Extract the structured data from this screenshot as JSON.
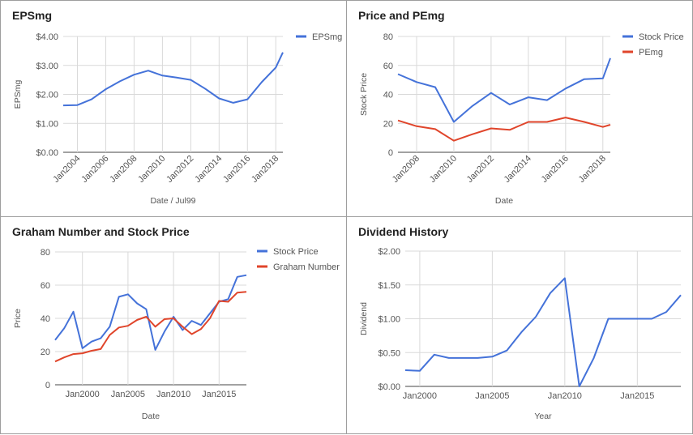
{
  "colors": {
    "blue": "#4472d9",
    "red": "#e0452b",
    "grid": "#d9d9d9",
    "axis": "#444444",
    "text": "#555555"
  },
  "chart_data": [
    {
      "type": "line",
      "title": "EPSmg",
      "xlabel": "Date / Jul99",
      "ylabel": "EPSmg",
      "ylim": [
        0,
        4
      ],
      "yticks": [
        "$0.00",
        "$1.00",
        "$2.00",
        "$3.00",
        "$4.00"
      ],
      "xticks": [
        {
          "label": "Jan2004",
          "x": 2004
        },
        {
          "label": "Jan2006",
          "x": 2006
        },
        {
          "label": "Jan2008",
          "x": 2008
        },
        {
          "label": "Jan2010",
          "x": 2010
        },
        {
          "label": "Jan2012",
          "x": 2012
        },
        {
          "label": "Jan2014",
          "x": 2014
        },
        {
          "label": "Jan2016",
          "x": 2016
        },
        {
          "label": "Jan2018",
          "x": 2018
        }
      ],
      "legend": "right",
      "series": [
        {
          "name": "EPSmg",
          "color": "blue",
          "x": [
            2003,
            2004,
            2005,
            2006,
            2007,
            2008,
            2009,
            2010,
            2011,
            2012,
            2013,
            2014,
            2015,
            2016,
            2017,
            2018,
            2018.5
          ],
          "values": [
            1.62,
            1.63,
            1.83,
            2.18,
            2.45,
            2.68,
            2.82,
            2.65,
            2.58,
            2.5,
            2.2,
            1.86,
            1.71,
            1.83,
            2.42,
            2.93,
            3.45
          ]
        }
      ]
    },
    {
      "type": "line",
      "title": "Price and PEmg",
      "xlabel": "Date",
      "ylabel": "Stock Price",
      "ylim": [
        0,
        80
      ],
      "yticks": [
        "0",
        "20",
        "40",
        "60",
        "80"
      ],
      "xticks": [
        {
          "label": "Jan2008",
          "x": 2008
        },
        {
          "label": "Jan2010",
          "x": 2010
        },
        {
          "label": "Jan2012",
          "x": 2012
        },
        {
          "label": "Jan2014",
          "x": 2014
        },
        {
          "label": "Jan2016",
          "x": 2016
        },
        {
          "label": "Jan2018",
          "x": 2018
        }
      ],
      "legend": "right",
      "series": [
        {
          "name": "Stock Price",
          "color": "blue",
          "x": [
            2007,
            2008,
            2009,
            2010,
            2011,
            2012,
            2013,
            2014,
            2015,
            2016,
            2017,
            2018,
            2018.4
          ],
          "values": [
            54,
            48.5,
            45,
            21,
            32,
            41,
            33,
            38,
            36,
            44,
            50.5,
            51,
            65
          ]
        },
        {
          "name": "PEmg",
          "color": "red",
          "x": [
            2007,
            2008,
            2009,
            2010,
            2011,
            2012,
            2013,
            2014,
            2015,
            2016,
            2017,
            2018,
            2018.4
          ],
          "values": [
            22,
            18,
            16,
            8,
            12.5,
            16.5,
            15.5,
            21,
            21,
            24,
            21,
            17.5,
            19
          ]
        }
      ]
    },
    {
      "type": "line",
      "title": "Graham Number and Stock Price",
      "xlabel": "Date",
      "ylabel": "Price",
      "ylim": [
        0,
        80
      ],
      "yticks": [
        "0",
        "20",
        "40",
        "60",
        "80"
      ],
      "xticks": [
        {
          "label": "Jan2000",
          "x": 2000
        },
        {
          "label": "Jan2005",
          "x": 2005
        },
        {
          "label": "Jan2010",
          "x": 2010
        },
        {
          "label": "Jan2015",
          "x": 2015
        }
      ],
      "legend": "right",
      "series": [
        {
          "name": "Stock Price",
          "color": "blue",
          "x": [
            1997,
            1998,
            1999,
            2000,
            2001,
            2002,
            2003,
            2004,
            2005,
            2006,
            2007,
            2008,
            2009,
            2010,
            2011,
            2012,
            2013,
            2014,
            2015,
            2016,
            2017,
            2018
          ],
          "values": [
            27,
            34,
            44,
            22,
            26,
            28,
            35,
            53,
            54.5,
            49,
            45.5,
            21,
            32,
            41,
            33,
            38.5,
            36,
            43,
            50,
            51.5,
            65,
            66
          ]
        },
        {
          "name": "Graham Number",
          "color": "red",
          "x": [
            1997,
            1998,
            1999,
            2000,
            2001,
            2002,
            2003,
            2004,
            2005,
            2006,
            2007,
            2008,
            2009,
            2010,
            2011,
            2012,
            2013,
            2014,
            2015,
            2016,
            2017,
            2018
          ],
          "values": [
            14,
            16.5,
            18.5,
            19,
            20.5,
            21.5,
            30,
            34.5,
            35.5,
            39,
            41,
            35,
            39.5,
            40,
            35,
            30.5,
            33.5,
            40,
            50.5,
            50,
            55.5,
            56
          ]
        }
      ]
    },
    {
      "type": "line",
      "title": "Dividend History",
      "xlabel": "Year",
      "ylabel": "Dividend",
      "ylim": [
        0,
        2
      ],
      "yticks": [
        "$0.00",
        "$0.50",
        "$1.00",
        "$1.50",
        "$2.00"
      ],
      "xticks": [
        {
          "label": "Jan2000",
          "x": 2000
        },
        {
          "label": "Jan2005",
          "x": 2005
        },
        {
          "label": "Jan2010",
          "x": 2010
        },
        {
          "label": "Jan2015",
          "x": 2015
        }
      ],
      "legend": "none",
      "series": [
        {
          "name": "",
          "color": "blue",
          "x": [
            1999,
            2000,
            2001,
            2002,
            2003,
            2004,
            2005,
            2006,
            2007,
            2008,
            2009,
            2010,
            2011,
            2012,
            2013,
            2014,
            2015,
            2016,
            2017,
            2018
          ],
          "values": [
            0.24,
            0.23,
            0.47,
            0.42,
            0.42,
            0.42,
            0.44,
            0.53,
            0.8,
            1.03,
            1.38,
            1.6,
            0.0,
            0.42,
            1.0,
            1.0,
            1.0,
            1.0,
            1.1,
            1.35
          ]
        }
      ]
    }
  ]
}
